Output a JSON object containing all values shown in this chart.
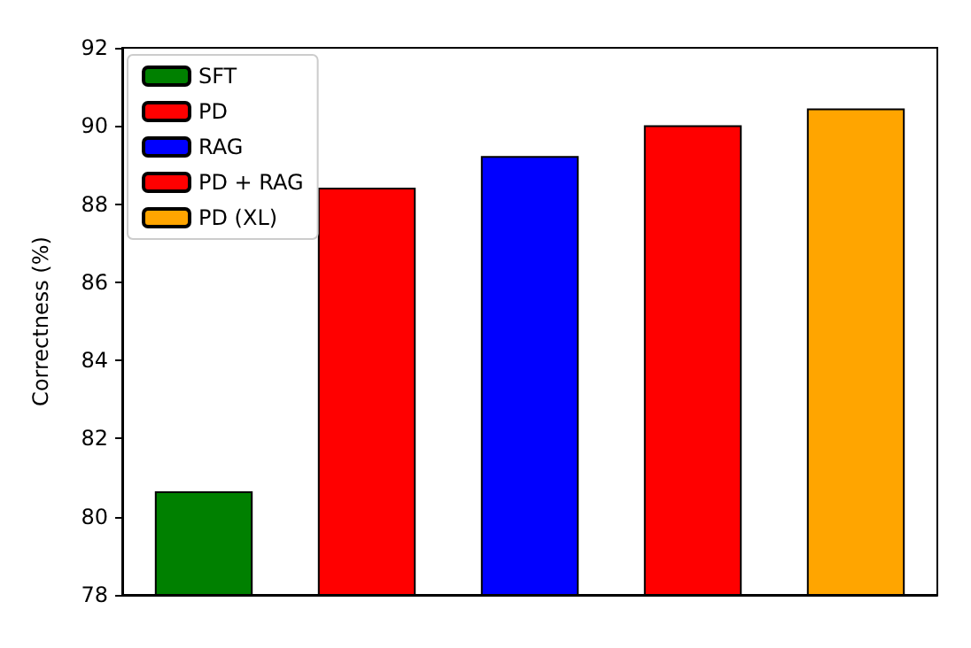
{
  "chart_data": {
    "type": "bar",
    "ylabel": "Correctness (%)",
    "categories": [
      null,
      null,
      null,
      null,
      null
    ],
    "series": [
      {
        "name": "SFT",
        "color": "#008000",
        "values": [
          80.65,
          null,
          null,
          null,
          null
        ]
      },
      {
        "name": "PD",
        "color": "#ff0000",
        "values": [
          null,
          88.42,
          null,
          null,
          null
        ]
      },
      {
        "name": "RAG",
        "color": "#0000ff",
        "values": [
          null,
          null,
          89.23,
          null,
          null
        ]
      },
      {
        "name": "PD + RAG",
        "color": "#ff0000",
        "values": [
          null,
          null,
          null,
          90.02,
          null
        ]
      },
      {
        "name": "PD (XL)",
        "color": "#ffa500",
        "values": [
          null,
          null,
          null,
          null,
          90.45
        ]
      }
    ],
    "ylim": [
      78,
      92
    ],
    "yticks": [
      78,
      80,
      82,
      84,
      86,
      88,
      90,
      92
    ],
    "legend": "top left",
    "grid": false
  }
}
